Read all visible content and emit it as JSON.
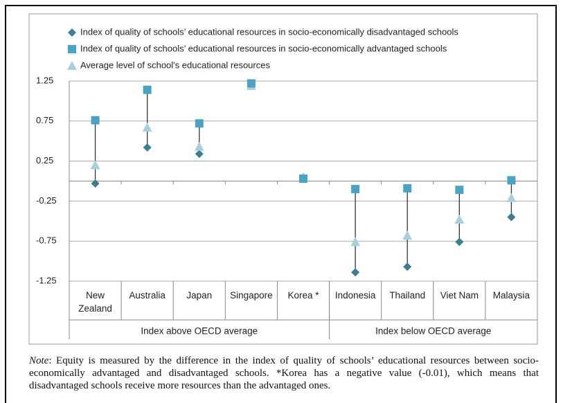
{
  "chart_data": {
    "type": "dot_range",
    "categories": [
      "New Zealand",
      "Australia",
      "Japan",
      "Singapore",
      "Korea *",
      "Indonesia",
      "Thailand",
      "Viet Nam",
      "Malaysia"
    ],
    "groups": [
      {
        "name": "Index above OECD average",
        "count": 5
      },
      {
        "name": "Index below OECD average",
        "count": 4
      }
    ],
    "series": [
      {
        "name": "Index of quality of schools’ educational resources in socio-economically disadvantaged schools",
        "color": "#3e7e91",
        "marker": "diamond",
        "values": [
          -0.03,
          0.42,
          0.34,
          1.21,
          0.04,
          -1.14,
          -1.07,
          -0.76,
          -0.45
        ]
      },
      {
        "name": "Index of quality of schools’ educational resources in socio-economically advantaged schools",
        "color": "#4ba3c3",
        "marker": "square",
        "values": [
          0.76,
          1.14,
          0.72,
          1.22,
          0.03,
          -0.1,
          -0.09,
          -0.11,
          0.01
        ]
      },
      {
        "name": "Average level of school's educational resources",
        "color": "#a9cfdd",
        "marker": "triangle",
        "values": [
          0.2,
          0.67,
          0.43,
          1.19,
          0.05,
          -0.76,
          -0.68,
          -0.48,
          -0.21
        ]
      }
    ],
    "ylim": [
      -1.25,
      1.25
    ],
    "yticks": [
      1.25,
      0.75,
      0.25,
      -0.25,
      -0.75,
      -1.25
    ],
    "grid": true,
    "note_label": "Note",
    "note": ": Equity is measured by the difference in the index of quality of schools’ educational resources between socio-economically advantaged and disadvantaged schools. *Korea has a negative value (-0.01), which means that disadvantaged schools receive more resources than the advantaged ones."
  }
}
